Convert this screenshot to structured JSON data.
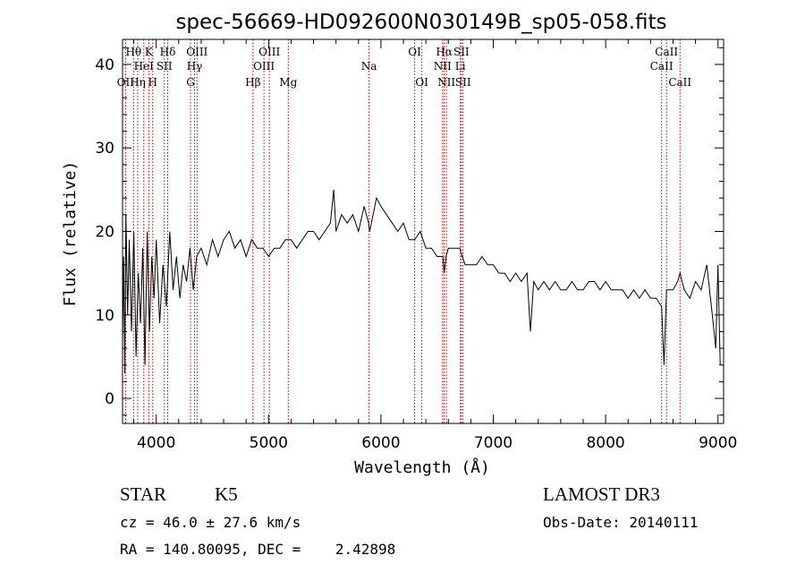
{
  "chart_data": {
    "type": "line",
    "title": "spec-56669-HD092600N030149B_sp05-058.fits",
    "xlabel": "Wavelength (Å)",
    "ylabel": "Flux (relative)",
    "xlim": [
      3700,
      9050
    ],
    "ylim": [
      -3,
      43
    ],
    "xticks": [
      4000,
      5000,
      6000,
      7000,
      8000,
      9000
    ],
    "yticks": [
      0,
      10,
      20,
      30,
      40
    ],
    "grid": false,
    "series": [
      {
        "name": "flux",
        "x": [
          3700,
          3710,
          3720,
          3730,
          3745,
          3760,
          3780,
          3800,
          3820,
          3840,
          3860,
          3880,
          3900,
          3920,
          3940,
          3960,
          3980,
          4000,
          4030,
          4060,
          4090,
          4120,
          4150,
          4180,
          4210,
          4240,
          4270,
          4300,
          4330,
          4360,
          4400,
          4450,
          4500,
          4550,
          4600,
          4650,
          4700,
          4750,
          4800,
          4850,
          4900,
          4950,
          5000,
          5050,
          5100,
          5150,
          5200,
          5250,
          5300,
          5350,
          5400,
          5450,
          5500,
          5550,
          5580,
          5600,
          5650,
          5700,
          5750,
          5800,
          5850,
          5890,
          5900,
          5930,
          5960,
          6000,
          6050,
          6100,
          6150,
          6200,
          6250,
          6300,
          6350,
          6400,
          6450,
          6500,
          6550,
          6563,
          6580,
          6600,
          6650,
          6700,
          6750,
          6800,
          6850,
          6900,
          6950,
          7000,
          7050,
          7100,
          7150,
          7200,
          7250,
          7300,
          7330,
          7360,
          7400,
          7450,
          7500,
          7550,
          7600,
          7650,
          7700,
          7750,
          7800,
          7850,
          7900,
          7950,
          8000,
          8050,
          8100,
          8150,
          8200,
          8250,
          8300,
          8350,
          8400,
          8450,
          8498,
          8520,
          8542,
          8570,
          8600,
          8640,
          8662,
          8700,
          8750,
          8800,
          8850,
          8900,
          8950,
          8980,
          9000,
          9020
        ],
        "values": [
          7,
          17,
          3,
          22,
          10,
          19,
          8,
          20,
          5,
          15,
          9,
          18,
          4,
          20,
          8,
          17,
          12,
          19,
          9,
          16,
          11,
          20,
          13,
          17,
          12,
          16,
          14,
          18,
          13,
          17,
          18,
          16,
          19,
          17,
          19,
          20,
          18,
          19,
          17,
          19,
          18,
          18,
          17,
          18,
          18,
          19,
          19,
          18,
          19,
          20,
          20,
          19,
          20,
          21,
          25,
          20,
          22,
          21,
          22,
          20,
          23,
          21,
          20,
          22,
          24,
          23,
          22,
          21,
          20,
          21,
          19,
          19,
          20,
          18,
          18,
          17,
          17,
          15,
          17,
          18,
          18,
          18,
          16,
          16,
          16,
          17,
          16,
          16,
          15,
          15,
          14,
          15,
          14,
          15,
          8,
          14,
          13,
          14,
          13,
          14,
          13,
          13,
          14,
          13,
          13,
          14,
          14,
          13,
          14,
          13,
          13,
          13,
          12,
          13,
          12,
          13,
          12,
          12,
          11,
          4,
          13,
          13,
          13,
          14,
          15,
          13,
          12,
          14,
          13,
          16,
          10,
          6,
          16,
          4
        ]
      }
    ],
    "lines": [
      {
        "wl": 3727,
        "label": "OII",
        "row": 3
      },
      {
        "wl": 3798,
        "label": "Hθ",
        "row": 1
      },
      {
        "wl": 3835,
        "label": "Hη",
        "row": 3
      },
      {
        "wl": 3889,
        "label": "HeI",
        "row": 2
      },
      {
        "wl": 3934,
        "label": "K",
        "row": 1
      },
      {
        "wl": 3969,
        "label": "H",
        "row": 3
      },
      {
        "wl": 4072,
        "label": "SII",
        "row": 2
      },
      {
        "wl": 4102,
        "label": "Hδ",
        "row": 1
      },
      {
        "wl": 4305,
        "label": "G",
        "row": 3
      },
      {
        "wl": 4341,
        "label": "Hγ",
        "row": 2
      },
      {
        "wl": 4363,
        "label": "OIII",
        "row": 1
      },
      {
        "wl": 4861,
        "label": "Hβ",
        "row": 3
      },
      {
        "wl": 4959,
        "label": "OIII",
        "row": 2
      },
      {
        "wl": 5007,
        "label": "OIII",
        "row": 1
      },
      {
        "wl": 5175,
        "label": "Mg",
        "row": 3
      },
      {
        "wl": 5894,
        "label": "Na",
        "row": 2
      },
      {
        "wl": 6300,
        "label": "OI",
        "row": 1
      },
      {
        "wl": 6364,
        "label": "OI",
        "row": 3
      },
      {
        "wl": 6548,
        "label": "NII",
        "row": 2
      },
      {
        "wl": 6563,
        "label": "Hα",
        "row": 1
      },
      {
        "wl": 6583,
        "label": "NII",
        "row": 3
      },
      {
        "wl": 6707,
        "label": "Li",
        "row": 2
      },
      {
        "wl": 6716,
        "label": "SII",
        "row": 1
      },
      {
        "wl": 6731,
        "label": "SII",
        "row": 3
      },
      {
        "wl": 8498,
        "label": "CaII",
        "row": 2
      },
      {
        "wl": 8542,
        "label": "CaII",
        "row": 1
      },
      {
        "wl": 8662,
        "label": "CaII",
        "row": 3
      }
    ]
  },
  "footer": {
    "object_type": "STAR",
    "subclass": "K5",
    "survey": "LAMOST DR3",
    "redshift": "cz = 46.0 ± 27.6 km/s",
    "obs_date": "Obs-Date: 20140111",
    "coords": "RA = 140.80095, DEC =    2.42898"
  },
  "colors": {
    "spectrum": "#000000",
    "line_markers": "#c00000",
    "axes": "#000000"
  }
}
